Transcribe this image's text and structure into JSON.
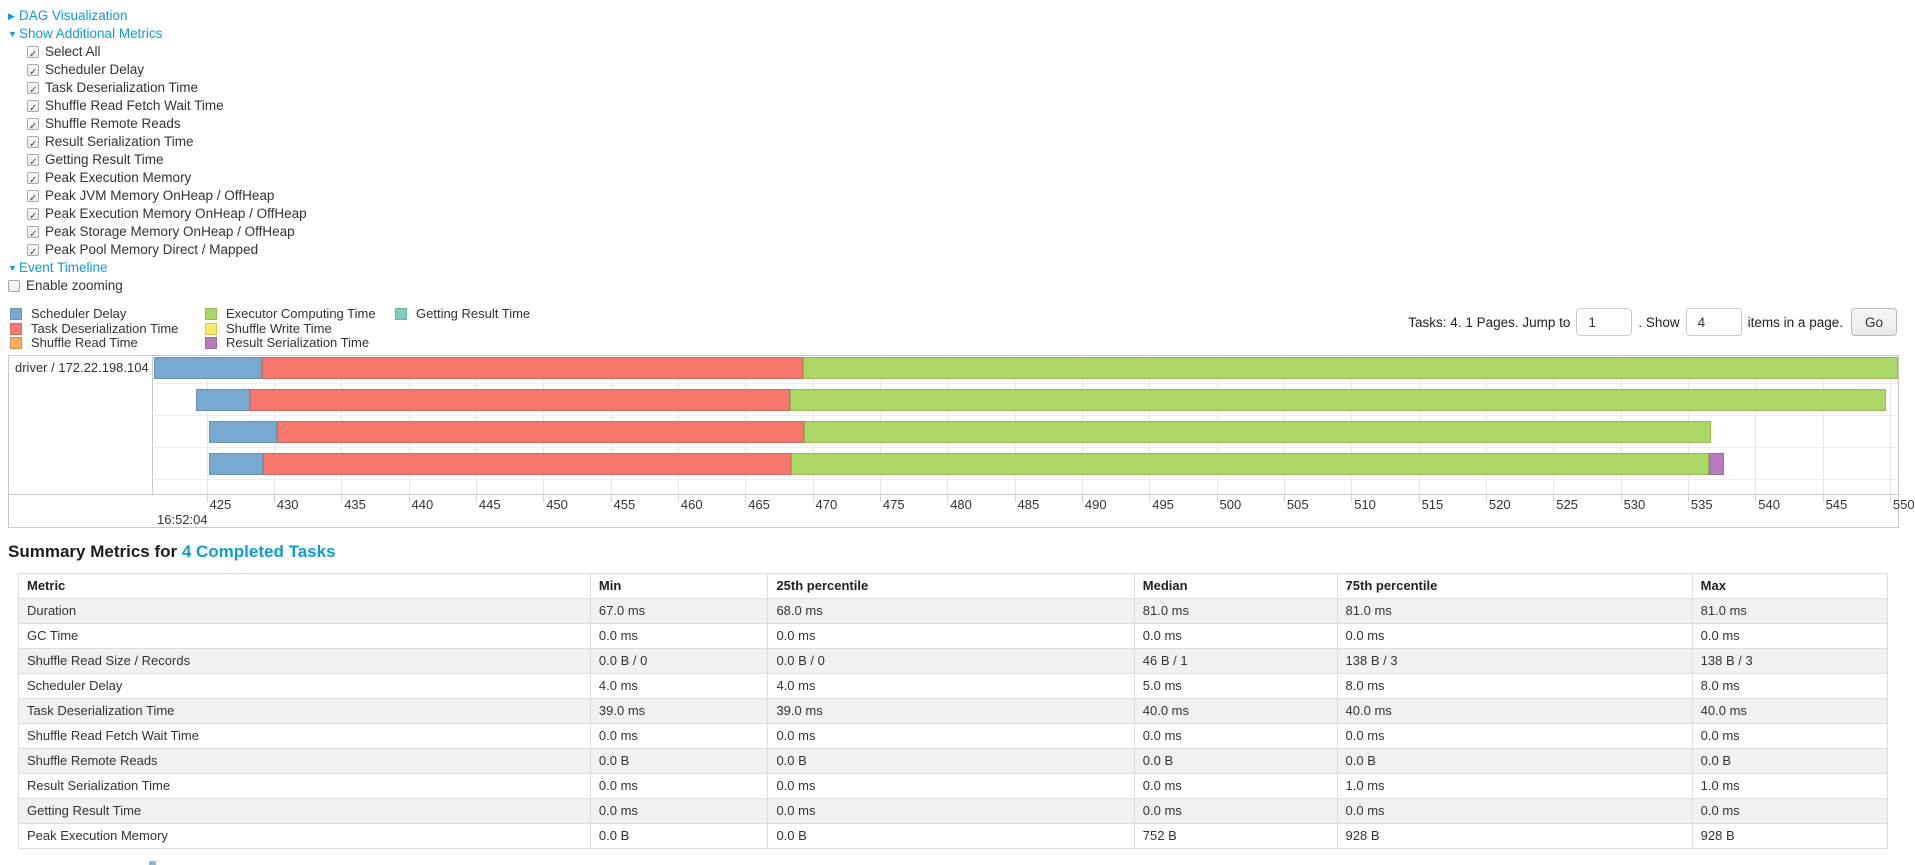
{
  "link_color": "#0e9bd8",
  "controls": {
    "dag": {
      "label": "DAG Visualization",
      "state": "collapsed"
    },
    "metrics": {
      "label": "Show Additional Metrics",
      "state": "expanded",
      "items": [
        "Select All",
        "Scheduler Delay",
        "Task Deserialization Time",
        "Shuffle Read Fetch Wait Time",
        "Shuffle Remote Reads",
        "Result Serialization Time",
        "Getting Result Time",
        "Peak Execution Memory",
        "Peak JVM Memory OnHeap / OffHeap",
        "Peak Execution Memory OnHeap / OffHeap",
        "Peak Storage Memory OnHeap / OffHeap",
        "Peak Pool Memory Direct / Mapped"
      ]
    },
    "event_timeline": {
      "label": "Event Timeline",
      "state": "expanded"
    },
    "enable_zooming": {
      "label": "Enable zooming",
      "checked": false
    }
  },
  "legend": {
    "columns": [
      [
        {
          "label": "Scheduler Delay",
          "type": "scheduler-delay"
        },
        {
          "label": "Task Deserialization Time",
          "type": "task-deserialization"
        },
        {
          "label": "Shuffle Read Time",
          "type": "shuffle-read"
        }
      ],
      [
        {
          "label": "Executor Computing Time",
          "type": "executor-computing"
        },
        {
          "label": "Shuffle Write Time",
          "type": "shuffle-write"
        },
        {
          "label": "Result Serialization Time",
          "type": "result-serialization"
        }
      ],
      [
        {
          "label": "Getting Result Time",
          "type": "getting-result"
        }
      ]
    ]
  },
  "colors": {
    "scheduler-delay": {
      "fill": "#78a9d1",
      "stroke": "#6b94b0"
    },
    "task-deserialization": {
      "fill": "#f9776c",
      "stroke": "#d26b5f"
    },
    "shuffle-read": {
      "fill": "#fbac5d",
      "stroke": "#d38a51"
    },
    "executor-computing": {
      "fill": "#abd766",
      "stroke": "#95b957"
    },
    "shuffle-write": {
      "fill": "#f8e966",
      "stroke": "#d5c55c"
    },
    "result-serialization": {
      "fill": "#b77cbd",
      "stroke": "#9d6b9e"
    },
    "getting-result": {
      "fill": "#7fcebf",
      "stroke": "#75b0a6"
    }
  },
  "pagination": {
    "prefix": "Tasks: 4. 1 Pages. Jump to",
    "jump_value": "1",
    "mid": ". Show",
    "show_value": "4",
    "suffix": "items in a page.",
    "go_label": "Go"
  },
  "chart_data": {
    "type": "timeline",
    "row_label": "driver / 172.22.198.104",
    "axis": {
      "min": 421.1,
      "max": 550.6,
      "tick_start": 425,
      "tick_step": 5,
      "tick_labels": [
        "425",
        "430",
        "435",
        "440",
        "445",
        "450",
        "455",
        "460",
        "465",
        "470",
        "475",
        "480",
        "485",
        "490",
        "495",
        "500",
        "505",
        "510",
        "515",
        "520",
        "525",
        "530",
        "535",
        "540",
        "545",
        "550"
      ],
      "major_label": "16:52:04",
      "grid": true
    },
    "tasks": [
      {
        "segments": [
          {
            "type": "scheduler-delay",
            "start": 421.1,
            "end": 429.1
          },
          {
            "type": "task-deserialization",
            "start": 429.1,
            "end": 469.3
          },
          {
            "type": "executor-computing",
            "start": 469.3,
            "end": 551.5
          }
        ]
      },
      {
        "segments": [
          {
            "type": "scheduler-delay",
            "start": 424.2,
            "end": 428.2
          },
          {
            "type": "task-deserialization",
            "start": 428.2,
            "end": 468.3
          },
          {
            "type": "executor-computing",
            "start": 468.3,
            "end": 549.7
          }
        ]
      },
      {
        "segments": [
          {
            "type": "scheduler-delay",
            "start": 425.2,
            "end": 430.2
          },
          {
            "type": "task-deserialization",
            "start": 430.2,
            "end": 469.4
          },
          {
            "type": "executor-computing",
            "start": 469.4,
            "end": 536.7
          }
        ]
      },
      {
        "segments": [
          {
            "type": "scheduler-delay",
            "start": 425.2,
            "end": 429.2
          },
          {
            "type": "task-deserialization",
            "start": 429.2,
            "end": 468.4
          },
          {
            "type": "executor-computing",
            "start": 468.4,
            "end": 536.6
          },
          {
            "type": "result-serialization",
            "start": 536.6,
            "end": 537.7
          }
        ]
      }
    ]
  },
  "summary": {
    "title_prefix": "Summary Metrics for ",
    "title_link": "4 Completed Tasks",
    "table": {
      "headers": [
        "Metric",
        "Min",
        "25th percentile",
        "Median",
        "75th percentile",
        "Max"
      ],
      "col_widths_pct": [
        30.6,
        9.5,
        19.6,
        10.85,
        19.0,
        10.45
      ],
      "rows": [
        [
          "Duration",
          "67.0 ms",
          "68.0 ms",
          "81.0 ms",
          "81.0 ms",
          "81.0 ms"
        ],
        [
          "GC Time",
          "0.0 ms",
          "0.0 ms",
          "0.0 ms",
          "0.0 ms",
          "0.0 ms"
        ],
        [
          "Shuffle Read Size / Records",
          "0.0 B / 0",
          "0.0 B / 0",
          "46 B / 1",
          "138 B / 3",
          "138 B / 3"
        ],
        [
          "Scheduler Delay",
          "4.0 ms",
          "4.0 ms",
          "5.0 ms",
          "8.0 ms",
          "8.0 ms"
        ],
        [
          "Task Deserialization Time",
          "39.0 ms",
          "39.0 ms",
          "40.0 ms",
          "40.0 ms",
          "40.0 ms"
        ],
        [
          "Shuffle Read Fetch Wait Time",
          "0.0 ms",
          "0.0 ms",
          "0.0 ms",
          "0.0 ms",
          "0.0 ms"
        ],
        [
          "Shuffle Remote Reads",
          "0.0 B",
          "0.0 B",
          "0.0 B",
          "0.0 B",
          "0.0 B"
        ],
        [
          "Result Serialization Time",
          "0.0 ms",
          "0.0 ms",
          "0.0 ms",
          "1.0 ms",
          "1.0 ms"
        ],
        [
          "Getting Result Time",
          "0.0 ms",
          "0.0 ms",
          "0.0 ms",
          "0.0 ms",
          "0.0 ms"
        ],
        [
          "Peak Execution Memory",
          "0.0 B",
          "0.0 B",
          "752 B",
          "928 B",
          "928 B"
        ]
      ]
    }
  }
}
